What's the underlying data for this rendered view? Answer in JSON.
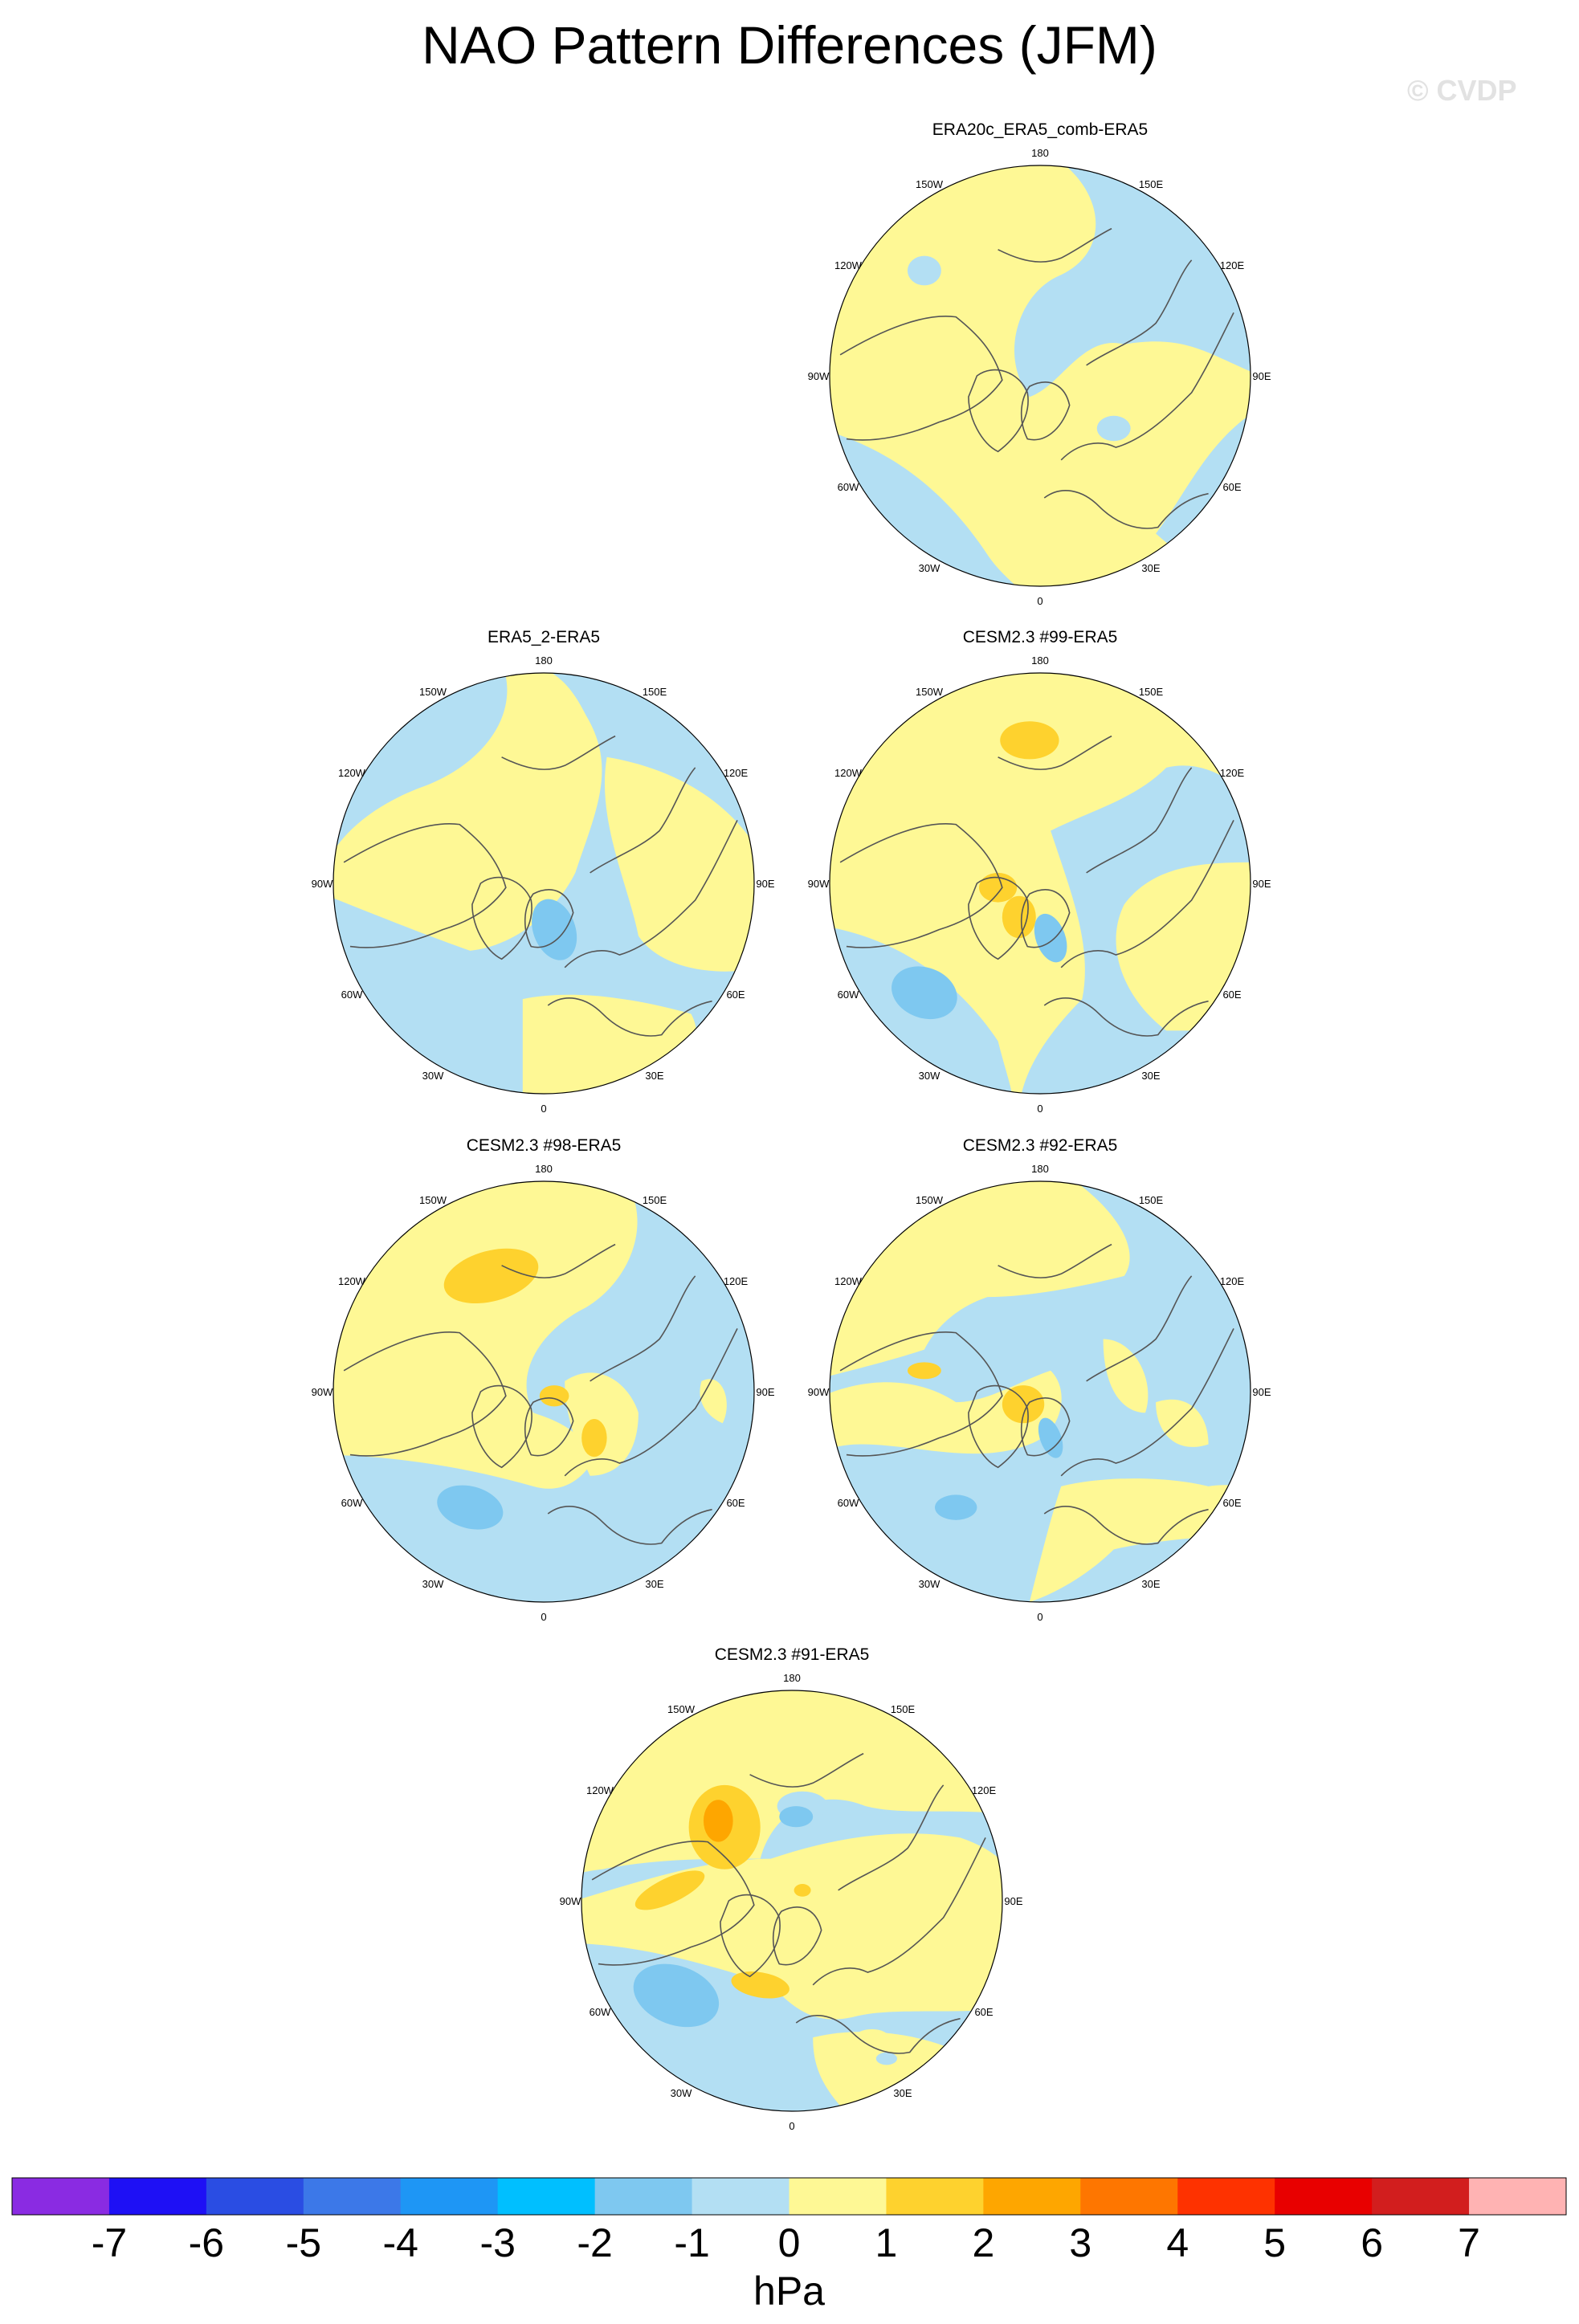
{
  "title": "NAO Pattern Differences (JFM)",
  "watermark": "© CVDP",
  "panels": [
    {
      "title": "ERA20c_ERA5_comb-ERA5",
      "row": 0,
      "col": 1,
      "pattern": "era20c"
    },
    {
      "title": "ERA5_2-ERA5",
      "row": 1,
      "col": 0,
      "pattern": "era5_2"
    },
    {
      "title": "CESM2.3 #99-ERA5",
      "row": 1,
      "col": 1,
      "pattern": "c99"
    },
    {
      "title": "CESM2.3 #98-ERA5",
      "row": 2,
      "col": 0,
      "pattern": "c98"
    },
    {
      "title": "CESM2.3 #92-ERA5",
      "row": 2,
      "col": 1,
      "pattern": "c92"
    },
    {
      "title": "CESM2.3 #91-ERA5",
      "row": 3,
      "col": 0.5,
      "pattern": "c91"
    }
  ],
  "longitude_labels": [
    "180",
    "150E",
    "120E",
    "90E",
    "60E",
    "30E",
    "0",
    "30W",
    "60W",
    "90W",
    "120W",
    "150W"
  ],
  "colorbar": {
    "unit": "hPa",
    "ticks": [
      "-7",
      "-6",
      "-5",
      "-4",
      "-3",
      "-2",
      "-1",
      "0",
      "1",
      "2",
      "3",
      "4",
      "5",
      "6",
      "7"
    ],
    "colors": [
      "#8a2be2",
      "#1e10f5",
      "#2a4de3",
      "#3c78e8",
      "#1e96f5",
      "#00bfff",
      "#7ec8f0",
      "#b3dff3",
      "#fef895",
      "#fed22e",
      "#fea600",
      "#fe7600",
      "#fe3200",
      "#e80000",
      "#d21e1e",
      "#ffb3b3"
    ]
  },
  "colors": {
    "neg_1": "#b3dff3",
    "neg_2": "#7ec8f0",
    "pos_1": "#fef895",
    "pos_2": "#fed22e",
    "pos_3": "#fea600",
    "coastline": "#555555",
    "outline": "#000000"
  }
}
